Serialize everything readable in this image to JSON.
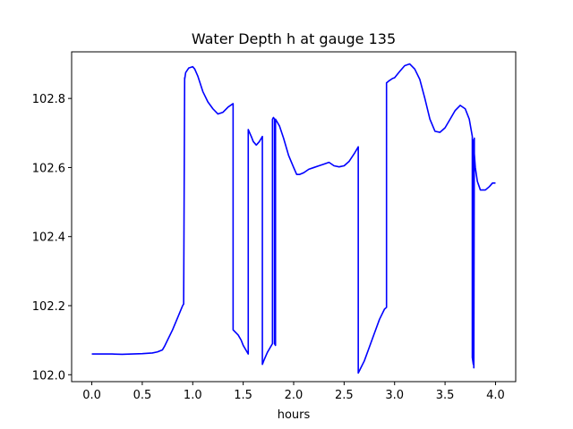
{
  "chart_data": {
    "type": "line",
    "title": "Water Depth h at gauge 135",
    "xlabel": "hours",
    "ylabel": "",
    "xlim": [
      -0.2,
      4.2
    ],
    "ylim": [
      101.98,
      102.935
    ],
    "xticks": [
      0.0,
      0.5,
      1.0,
      1.5,
      2.0,
      2.5,
      3.0,
      3.5,
      4.0
    ],
    "xtick_labels": [
      "0.0",
      "0.5",
      "1.0",
      "1.5",
      "2.0",
      "2.5",
      "3.0",
      "3.5",
      "4.0"
    ],
    "yticks": [
      102.0,
      102.2,
      102.4,
      102.6,
      102.8
    ],
    "ytick_labels": [
      "102.0",
      "102.2",
      "102.4",
      "102.6",
      "102.8"
    ],
    "grid": false,
    "series": [
      {
        "name": "",
        "color": "#0000ff",
        "x": [
          0.0,
          0.2,
          0.3,
          0.5,
          0.6,
          0.65,
          0.7,
          0.72,
          0.75,
          0.8,
          0.85,
          0.9,
          0.91,
          0.92,
          0.92,
          0.93,
          0.96,
          1.0,
          1.02,
          1.05,
          1.1,
          1.15,
          1.2,
          1.25,
          1.3,
          1.35,
          1.4,
          1.4,
          1.45,
          1.48,
          1.5,
          1.53,
          1.55,
          1.55,
          1.58,
          1.6,
          1.63,
          1.66,
          1.68,
          1.69,
          1.69,
          1.71,
          1.74,
          1.77,
          1.78,
          1.79,
          1.79,
          1.8,
          1.81,
          1.81,
          1.82,
          1.82,
          1.83,
          1.86,
          1.9,
          1.95,
          2.0,
          2.03,
          2.06,
          2.1,
          2.15,
          2.2,
          2.25,
          2.3,
          2.35,
          2.4,
          2.45,
          2.5,
          2.55,
          2.6,
          2.64,
          2.64,
          2.7,
          2.75,
          2.8,
          2.85,
          2.9,
          2.92,
          2.92,
          2.94,
          2.98,
          3.0,
          3.05,
          3.1,
          3.15,
          3.2,
          3.25,
          3.3,
          3.35,
          3.4,
          3.45,
          3.5,
          3.55,
          3.6,
          3.65,
          3.7,
          3.74,
          3.77,
          3.77,
          3.78,
          3.78,
          3.785,
          3.79,
          3.79,
          3.8,
          3.82,
          3.85,
          3.9,
          3.94,
          3.97,
          4.0
        ],
        "y": [
          102.06,
          102.06,
          102.059,
          102.061,
          102.063,
          102.066,
          102.072,
          102.082,
          102.1,
          102.13,
          102.165,
          102.2,
          102.205,
          102.86,
          102.855,
          102.875,
          102.888,
          102.892,
          102.885,
          102.865,
          102.82,
          102.79,
          102.77,
          102.755,
          102.76,
          102.775,
          102.785,
          102.13,
          102.115,
          102.1,
          102.085,
          102.07,
          102.06,
          102.71,
          102.69,
          102.675,
          102.665,
          102.675,
          102.685,
          102.69,
          102.03,
          102.045,
          102.065,
          102.08,
          102.085,
          102.09,
          102.74,
          102.745,
          102.74,
          102.09,
          102.085,
          102.74,
          102.735,
          102.72,
          102.685,
          102.635,
          102.6,
          102.58,
          102.58,
          102.585,
          102.595,
          102.6,
          102.605,
          102.61,
          102.615,
          102.605,
          102.602,
          102.605,
          102.618,
          102.64,
          102.66,
          102.005,
          102.04,
          102.08,
          102.12,
          102.16,
          102.19,
          102.195,
          102.845,
          102.85,
          102.858,
          102.86,
          102.878,
          102.895,
          102.9,
          102.885,
          102.855,
          102.8,
          102.74,
          102.705,
          102.702,
          102.715,
          102.74,
          102.765,
          102.78,
          102.77,
          102.74,
          102.69,
          102.05,
          102.03,
          102.68,
          102.02,
          102.685,
          102.64,
          102.6,
          102.56,
          102.535,
          102.535,
          102.545,
          102.555,
          102.555
        ]
      }
    ]
  }
}
